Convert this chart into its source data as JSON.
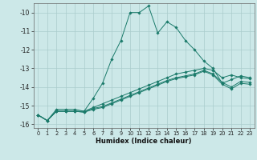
{
  "xlabel": "Humidex (Indice chaleur)",
  "background_color": "#cce8e8",
  "grid_color": "#aacccc",
  "line_color": "#1a7a6a",
  "xlim": [
    -0.5,
    23.5
  ],
  "ylim": [
    -16.2,
    -9.5
  ],
  "yticks": [
    -16,
    -15,
    -14,
    -13,
    -12,
    -11,
    -10
  ],
  "xticks": [
    0,
    1,
    2,
    3,
    4,
    5,
    6,
    7,
    8,
    9,
    10,
    11,
    12,
    13,
    14,
    15,
    16,
    17,
    18,
    19,
    20,
    21,
    22,
    23
  ],
  "series1_x": [
    0,
    1,
    2,
    3,
    4,
    5,
    6,
    7,
    8,
    9,
    10,
    11,
    12,
    13,
    14,
    15,
    16,
    17,
    18,
    19,
    20,
    21,
    22,
    23
  ],
  "series1_y": [
    -15.5,
    -15.8,
    -15.2,
    -15.2,
    -15.2,
    -15.3,
    -14.6,
    -13.8,
    -12.5,
    -11.5,
    -10.0,
    -10.0,
    -9.65,
    -11.1,
    -10.5,
    -10.8,
    -11.5,
    -12.0,
    -12.6,
    -13.0,
    -13.8,
    -13.6,
    -13.4,
    -13.5
  ],
  "series2_x": [
    0,
    1,
    2,
    3,
    4,
    5,
    6,
    7,
    8,
    9,
    10,
    11,
    12,
    13,
    14,
    15,
    16,
    17,
    18,
    19,
    20,
    21,
    22,
    23
  ],
  "series2_y": [
    -15.5,
    -15.8,
    -15.3,
    -15.3,
    -15.3,
    -15.3,
    -15.1,
    -14.9,
    -14.7,
    -14.5,
    -14.3,
    -14.1,
    -13.9,
    -13.7,
    -13.5,
    -13.3,
    -13.2,
    -13.1,
    -13.0,
    -13.1,
    -13.5,
    -13.35,
    -13.5,
    -13.55
  ],
  "series3_x": [
    0,
    1,
    2,
    3,
    4,
    5,
    6,
    7,
    8,
    9,
    10,
    11,
    12,
    13,
    14,
    15,
    16,
    17,
    18,
    19,
    20,
    21,
    22,
    23
  ],
  "series3_y": [
    -15.5,
    -15.8,
    -15.3,
    -15.3,
    -15.3,
    -15.35,
    -15.15,
    -15.05,
    -14.85,
    -14.65,
    -14.45,
    -14.25,
    -14.05,
    -13.85,
    -13.65,
    -13.5,
    -13.4,
    -13.3,
    -13.1,
    -13.3,
    -13.75,
    -14.0,
    -13.7,
    -13.75
  ],
  "series4_x": [
    0,
    1,
    2,
    3,
    4,
    5,
    6,
    7,
    8,
    9,
    10,
    11,
    12,
    13,
    14,
    15,
    16,
    17,
    18,
    19,
    20,
    21,
    22,
    23
  ],
  "series4_y": [
    -15.5,
    -15.8,
    -15.3,
    -15.3,
    -15.3,
    -15.35,
    -15.2,
    -15.1,
    -14.9,
    -14.7,
    -14.5,
    -14.3,
    -14.1,
    -13.9,
    -13.7,
    -13.55,
    -13.45,
    -13.35,
    -13.15,
    -13.35,
    -13.85,
    -14.1,
    -13.8,
    -13.85
  ]
}
